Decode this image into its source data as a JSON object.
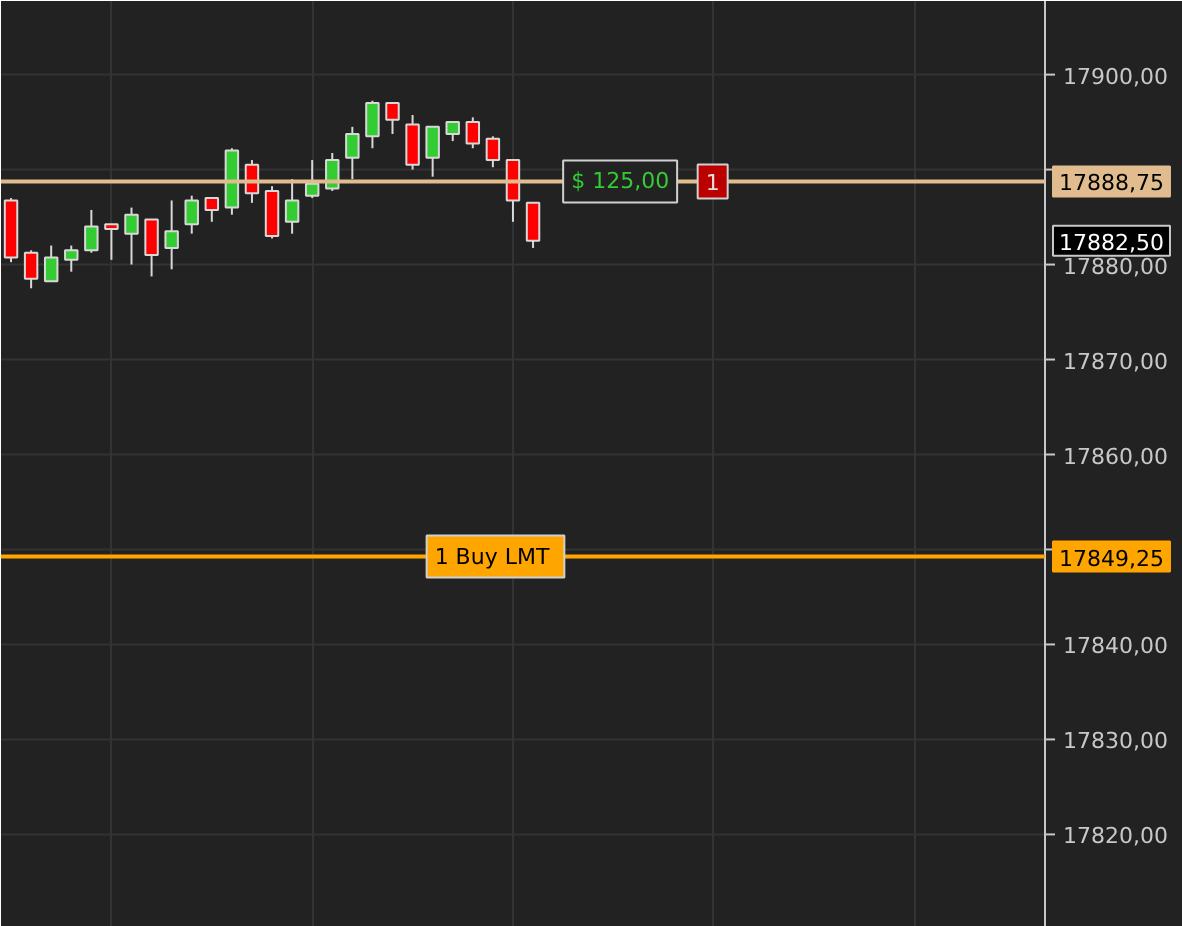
{
  "chart_data": {
    "type": "candlestick",
    "categories": [
      null,
      null,
      null,
      null,
      null,
      null,
      null,
      null,
      null,
      null,
      null,
      null,
      null,
      null,
      null,
      null,
      null,
      null,
      null,
      null,
      null,
      null,
      null,
      null,
      null,
      null,
      null,
      null,
      null,
      null,
      null,
      null,
      null,
      null,
      null,
      null,
      null,
      null,
      null,
      null,
      null,
      null,
      null,
      null,
      null,
      null,
      null,
      null,
      null,
      null,
      null,
      null
    ],
    "ohlc": [
      [
        17886.75,
        17887.0,
        17880.25,
        17880.75
      ],
      [
        17881.25,
        17881.5,
        17877.5,
        17878.5
      ],
      [
        17878.25,
        17882.0,
        17878.25,
        17880.75
      ],
      [
        17880.5,
        17882.0,
        17879.25,
        17881.5
      ],
      [
        17881.5,
        17885.75,
        17881.25,
        17884.0
      ],
      [
        17884.25,
        17884.25,
        17880.5,
        17883.75
      ],
      [
        17883.25,
        17886.0,
        17880.0,
        17885.25
      ],
      [
        17884.75,
        17884.75,
        17878.75,
        17881.0
      ],
      [
        17881.75,
        17886.75,
        17879.5,
        17883.5
      ],
      [
        17884.25,
        17887.25,
        17883.25,
        17886.75
      ],
      [
        17887.0,
        17887.0,
        17884.5,
        17885.75
      ],
      [
        17886.0,
        17892.25,
        17885.25,
        17892.0
      ],
      [
        17890.5,
        17891.0,
        17886.5,
        17887.5
      ],
      [
        17887.75,
        17888.25,
        17882.75,
        17883.0
      ],
      [
        17884.5,
        17889.0,
        17883.25,
        17886.75
      ],
      [
        17887.25,
        17891.0,
        17887.0,
        17888.5
      ],
      [
        17888.0,
        17891.75,
        17887.75,
        17891.0
      ],
      [
        17891.25,
        17894.5,
        17889.0,
        17893.75
      ],
      [
        17893.5,
        17897.25,
        17892.25,
        17897.0
      ],
      [
        17897.0,
        17897.0,
        17893.75,
        17895.25
      ],
      [
        17894.75,
        17895.75,
        17890.0,
        17890.5
      ],
      [
        17891.25,
        17894.5,
        17889.25,
        17894.5
      ],
      [
        17893.75,
        17895.0,
        17893.0,
        17895.0
      ],
      [
        17895.0,
        17895.5,
        17892.25,
        17892.75
      ],
      [
        17893.25,
        17893.5,
        17890.25,
        17891.0
      ],
      [
        17891.0,
        17891.0,
        17884.5,
        17886.75
      ],
      [
        17886.5,
        17886.5,
        17881.75,
        17882.5
      ],
      null,
      null,
      null,
      null,
      null,
      null,
      null,
      null,
      null,
      null,
      null,
      null,
      null,
      null,
      null,
      null,
      null,
      null,
      null,
      null,
      null,
      null,
      null,
      null,
      null
    ],
    "colors": [
      "#ff0000",
      "#ff0000",
      "#33cc33",
      "#33cc33",
      "#33cc33",
      "#ff0000",
      "#33cc33",
      "#ff0000",
      "#33cc33",
      "#33cc33",
      "#ff0000",
      "#33cc33",
      "#ff0000",
      "#ff0000",
      "#33cc33",
      "#33cc33",
      "#33cc33",
      "#33cc33",
      "#33cc33",
      "#ff0000",
      "#ff0000",
      "#33cc33",
      "#33cc33",
      "#ff0000",
      "#ff0000",
      "#ff0000",
      "#ff0000",
      null,
      null,
      null,
      null,
      null,
      null,
      null,
      null,
      null,
      null,
      null,
      null,
      null,
      null,
      null,
      null,
      null,
      null,
      null,
      null,
      null,
      null,
      null,
      null,
      null
    ],
    "ylim": [
      17810.25,
      17907.75
    ],
    "yticks": [
      {
        "value": 17820,
        "label": "17820,00"
      },
      {
        "value": 17830,
        "label": "17830,00"
      },
      {
        "value": 17840,
        "label": "17840,00"
      },
      {
        "value": 17850,
        "label": null
      },
      {
        "value": 17860,
        "label": "17860,00"
      },
      {
        "value": 17870,
        "label": "17870,00"
      },
      {
        "value": 17880,
        "label": "17880,00"
      },
      {
        "value": 17890,
        "label": null
      },
      {
        "value": 17900,
        "label": "17900,00"
      }
    ],
    "tick_labels": "y",
    "grid": true,
    "ref_lines": [
      {
        "axis": "y",
        "value": 17888.75,
        "label": "17888,75",
        "color": "#e0bc8e",
        "line_style": "solid"
      },
      {
        "axis": "y",
        "value": 17849.25,
        "label": "17849,25",
        "color": "#ffa500",
        "line_style": "solid"
      }
    ],
    "annotations": [
      {
        "text": "$ 125,00",
        "y": 17888.75
      },
      {
        "text": "1",
        "y": 17888.75
      },
      {
        "text": "1  Buy LMT",
        "y": 17849.25
      },
      "17882,50"
    ]
  }
}
